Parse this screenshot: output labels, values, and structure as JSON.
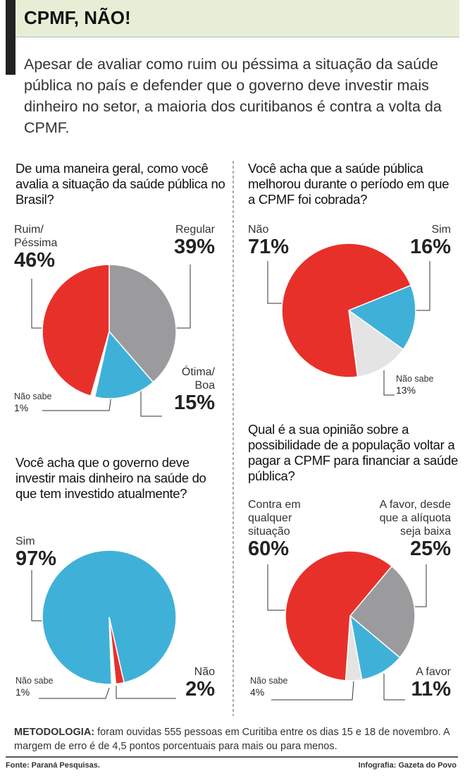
{
  "title": "CPMF, NÃO!",
  "subtitle": "Apesar de avaliar como ruim ou péssima a situação da saúde pública no país e defender que o governo deve investir mais dinheiro no setor, a maioria dos curitibanos é contra a volta da CPMF.",
  "chart_data": [
    {
      "type": "pie",
      "title": "De uma maneira geral, como você avalia a situação da saúde pública no Brasil?",
      "categories": [
        "Regular",
        "Ótima/\nBoa",
        "Não sabe",
        "Ruim/\nPéssima"
      ],
      "values": [
        39,
        15,
        1,
        46
      ],
      "value_labels": [
        "39%",
        "15%",
        "1%",
        "46%"
      ],
      "colors": [
        "#9b9b9d",
        "#3fb1d8",
        "#ffffff",
        "#e8302a"
      ]
    },
    {
      "type": "pie",
      "title": "Você acha que a saúde pública melhorou durante o período em que a CPMF foi cobrada?",
      "categories": [
        "Sim",
        "Não sabe",
        "Não"
      ],
      "values": [
        16,
        13,
        71
      ],
      "value_labels": [
        "16%",
        "13%",
        "71%"
      ],
      "colors": [
        "#3fb1d8",
        "#e4e4e4",
        "#e8302a"
      ]
    },
    {
      "type": "pie",
      "title": "Você acha que o governo deve investir mais dinheiro na saúde do que tem investido atualmente?",
      "categories": [
        "Sim",
        "Não",
        "Não sabe"
      ],
      "values": [
        97,
        2,
        1
      ],
      "value_labels": [
        "97%",
        "2%",
        "1%"
      ],
      "colors": [
        "#3fb1d8",
        "#e8302a",
        "#ffffff"
      ]
    },
    {
      "type": "pie",
      "title": "Qual é a sua opinião sobre a possibilidade de a população voltar a pagar a CPMF para financiar a saúde pública?",
      "categories": [
        "A favor, desde\nque a alíquota\nseja baixa",
        "A favor",
        "Não sabe",
        "Contra em\nqualquer\nsituação"
      ],
      "values": [
        25,
        11,
        4,
        60
      ],
      "value_labels": [
        "25%",
        "11%",
        "4%",
        "60%"
      ],
      "colors": [
        "#9b9b9d",
        "#3fb1d8",
        "#e4e4e4",
        "#e8302a"
      ]
    }
  ],
  "methodology": {
    "label": "METODOLOGIA:",
    "text": "foram ouvidas 555 pessoas em Curitiba entre os dias 15 e 18 de novembro. A margem de erro é de 4,5 pontos porcentuais para mais ou para menos."
  },
  "source": "Fonte: Paraná Pesquisas.",
  "credit": "Infografia: Gazeta do Povo"
}
